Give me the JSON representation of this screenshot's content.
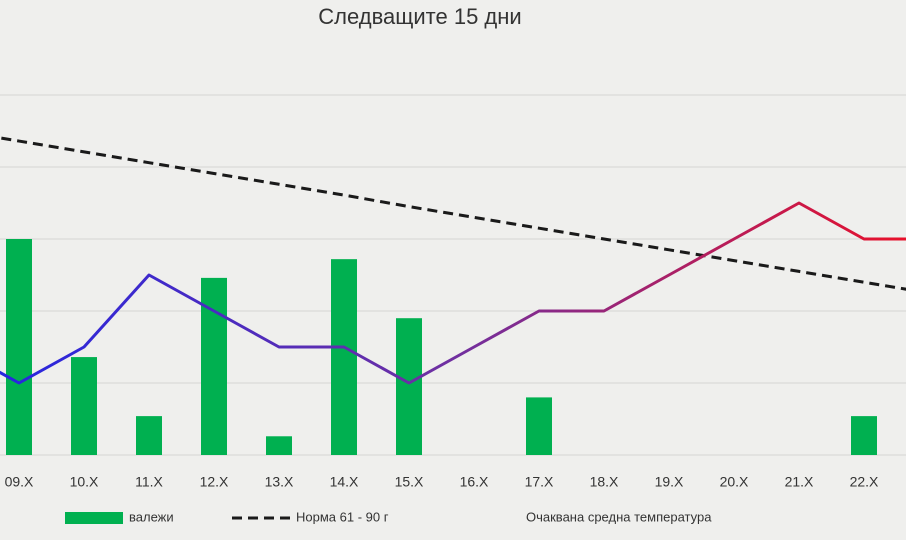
{
  "chart_data": {
    "type": "combo",
    "title": "Следващите 15 дни",
    "categories": [
      null,
      "09.X",
      "10.X",
      "11.X",
      "12.X",
      "13.X",
      "14.X",
      "15.X",
      "16.X",
      "17.X",
      "18.X",
      "19.X",
      "20.X",
      "21.X",
      "22.X",
      null
    ],
    "ylim": [
      0,
      6
    ],
    "yticks": [
      0,
      1,
      2,
      3,
      4,
      5
    ],
    "grid": true,
    "series": [
      {
        "name": "валежи",
        "kind": "bar",
        "color": "#00b050",
        "values": [
          null,
          3.0,
          1.36,
          0.54,
          2.46,
          0.26,
          2.72,
          1.9,
          0,
          0.8,
          0,
          0,
          0,
          0,
          0.54,
          null
        ]
      },
      {
        "name": "Норма 61 - 90 г",
        "kind": "dashed-line",
        "color": "#1a1a1a",
        "values": [
          4.51,
          4.36,
          4.21,
          4.06,
          3.91,
          3.76,
          3.61,
          3.45,
          3.3,
          3.15,
          3.0,
          2.85,
          2.7,
          2.55,
          2.4,
          2.25
        ]
      },
      {
        "name": "Очаквана средна температура",
        "kind": "line",
        "color": "#7030a0",
        "gradient": [
          "#2626e0",
          "#7030a0",
          "#e8102a"
        ],
        "values": [
          1.5,
          1.0,
          1.5,
          2.5,
          2.0,
          1.5,
          1.5,
          1.0,
          1.5,
          2.0,
          2.0,
          2.5,
          3.0,
          3.5,
          3.0,
          3.0
        ]
      }
    ]
  }
}
